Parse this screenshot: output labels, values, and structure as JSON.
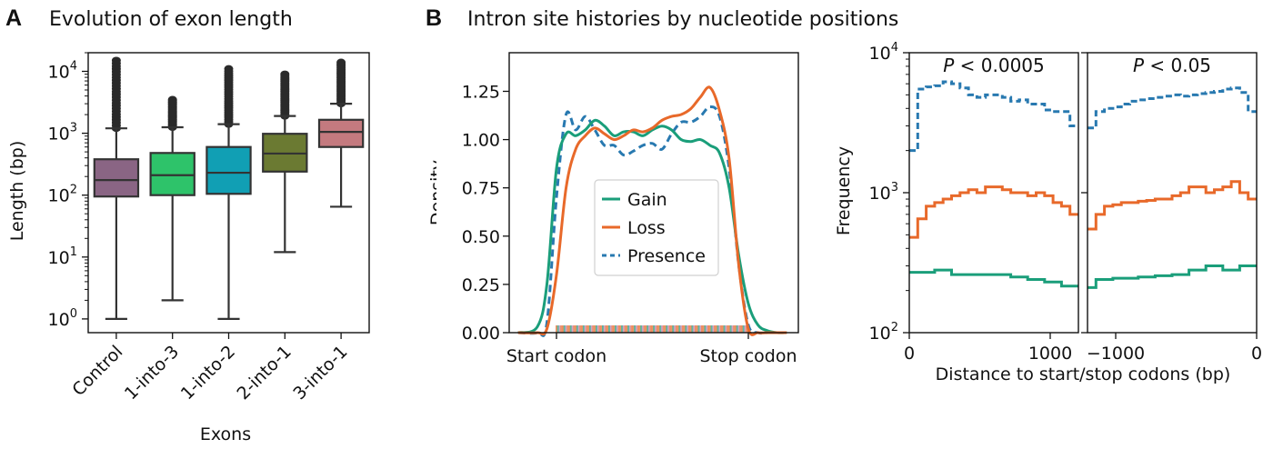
{
  "panel_a": {
    "letter": "A",
    "title": "Evolution of exon length"
  },
  "panel_b": {
    "letter": "B",
    "title": "Intron site histories by nucleotide positions"
  },
  "colors": {
    "control": "#8a6584",
    "one_into_three": "#2ec36a",
    "one_into_two": "#119fb4",
    "two_into_one": "#6b7a32",
    "three_into_one": "#c47a7f",
    "gain": "#1a9e7a",
    "loss": "#e8692a",
    "presence": "#2879b0"
  },
  "chart_data": [
    {
      "type": "box",
      "xlabel": "Exons",
      "ylabel": "Length (bp)",
      "yscale": "log",
      "ylim": [
        0.6,
        20000
      ],
      "ytick_labels": [
        "10^0",
        "10^1",
        "10^2",
        "10^3",
        "10^4"
      ],
      "categories": [
        "Control",
        "1-into-3",
        "1-into-2",
        "2-into-1",
        "3-into-1"
      ],
      "boxes": [
        {
          "whisker_low": 1,
          "q1": 95,
          "median": 175,
          "q3": 380,
          "whisker_high": 1200,
          "outlier_max": 15000
        },
        {
          "whisker_low": 2,
          "q1": 100,
          "median": 210,
          "q3": 480,
          "whisker_high": 1250,
          "outlier_max": 3500
        },
        {
          "whisker_low": 1,
          "q1": 105,
          "median": 230,
          "q3": 600,
          "whisker_high": 1400,
          "outlier_max": 11000
        },
        {
          "whisker_low": 12,
          "q1": 240,
          "median": 470,
          "q3": 980,
          "whisker_high": 1900,
          "outlier_max": 9000
        },
        {
          "whisker_low": 65,
          "q1": 600,
          "median": 1050,
          "q3": 1650,
          "whisker_high": 3000,
          "outlier_max": 14000
        }
      ]
    },
    {
      "type": "line",
      "ylabel": "Density",
      "xtick_labels": [
        "Start codon",
        "Stop codon"
      ],
      "ylim": [
        0,
        1.45
      ],
      "ytick_labels": [
        "0.00",
        "0.25",
        "0.50",
        "0.75",
        "1.00",
        "1.25"
      ],
      "x": [
        -0.2,
        -0.1,
        -0.05,
        0,
        0.05,
        0.1,
        0.15,
        0.2,
        0.25,
        0.3,
        0.35,
        0.4,
        0.45,
        0.5,
        0.55,
        0.6,
        0.65,
        0.7,
        0.75,
        0.8,
        0.85,
        0.9,
        0.95,
        1.0,
        1.05,
        1.1,
        1.15,
        1.2
      ],
      "series": [
        {
          "name": "Gain",
          "style": "solid",
          "values": [
            0.0,
            0.03,
            0.25,
            0.85,
            1.03,
            1.02,
            1.05,
            1.1,
            1.07,
            1.02,
            1.04,
            1.04,
            1.02,
            1.05,
            1.07,
            1.05,
            1.0,
            0.99,
            1.0,
            0.97,
            0.93,
            0.75,
            0.4,
            0.15,
            0.04,
            0.01,
            0.0,
            0.0
          ]
        },
        {
          "name": "Loss",
          "style": "solid",
          "values": [
            0.0,
            0.0,
            0.02,
            0.3,
            0.75,
            0.95,
            1.02,
            1.06,
            1.03,
            1.0,
            1.02,
            1.05,
            1.04,
            1.06,
            1.1,
            1.12,
            1.13,
            1.16,
            1.22,
            1.27,
            1.15,
            0.9,
            0.35,
            0.02,
            0.0,
            0.0,
            0.0,
            0.0
          ]
        },
        {
          "name": "Presence",
          "style": "dashed",
          "values": [
            0.0,
            0.0,
            0.05,
            0.7,
            1.13,
            1.05,
            1.12,
            1.05,
            0.97,
            0.97,
            0.92,
            0.94,
            0.97,
            0.98,
            0.95,
            1.03,
            1.09,
            1.09,
            1.12,
            1.17,
            1.12,
            0.85,
            0.35,
            0.04,
            0.0,
            0.0,
            0.0,
            0.0
          ]
        }
      ],
      "legend_position": "center"
    },
    {
      "type": "step",
      "ylabel": "Frequency",
      "xlabel": "Distance to start/stop codons (bp)",
      "yscale": "log",
      "ylim": [
        100,
        10000
      ],
      "ytick_labels": [
        "10^2",
        "10^3",
        "10^4"
      ],
      "subplots": [
        {
          "annotation": {
            "italic": "P",
            "text": " < 0.0005"
          },
          "xlim": [
            0,
            1200
          ],
          "xtick_labels": [
            "0",
            "1000"
          ],
          "x_edges": [
            0,
            60,
            120,
            180,
            240,
            300,
            360,
            420,
            480,
            540,
            600,
            660,
            720,
            780,
            840,
            900,
            960,
            1020,
            1080,
            1140,
            1200
          ],
          "series": [
            {
              "name": "Presence",
              "values": [
                2000,
                5500,
                5700,
                5800,
                6200,
                6000,
                5600,
                5000,
                4800,
                5000,
                5000,
                4800,
                4500,
                4600,
                4300,
                4300,
                3900,
                3800,
                3800,
                3000
              ]
            },
            {
              "name": "Loss",
              "values": [
                480,
                650,
                800,
                850,
                900,
                950,
                1000,
                1050,
                1000,
                1100,
                1100,
                1050,
                1000,
                1000,
                950,
                1000,
                950,
                850,
                800,
                700
              ]
            },
            {
              "name": "Gain",
              "values": [
                270,
                270,
                270,
                280,
                280,
                260,
                260,
                260,
                260,
                260,
                260,
                260,
                250,
                250,
                240,
                240,
                230,
                230,
                215,
                215
              ]
            }
          ]
        },
        {
          "annotation": {
            "italic": "P",
            "text": " < 0.05"
          },
          "xlim": [
            -1200,
            0
          ],
          "xtick_labels": [
            "−1000",
            "0"
          ],
          "x_edges": [
            -1200,
            -1140,
            -1080,
            -1020,
            -960,
            -900,
            -840,
            -780,
            -720,
            -660,
            -600,
            -540,
            -480,
            -420,
            -360,
            -300,
            -240,
            -180,
            -120,
            -60,
            0
          ],
          "series": [
            {
              "name": "Presence",
              "values": [
                2900,
                3800,
                4000,
                4100,
                4300,
                4500,
                4600,
                4700,
                4800,
                4900,
                5000,
                4900,
                5000,
                5100,
                5200,
                5300,
                5500,
                5600,
                5200,
                3800
              ]
            },
            {
              "name": "Loss",
              "values": [
                550,
                700,
                800,
                820,
                850,
                850,
                870,
                880,
                900,
                900,
                950,
                1000,
                1100,
                1100,
                1000,
                1050,
                1100,
                1200,
                1000,
                900
              ]
            },
            {
              "name": "Gain",
              "values": [
                210,
                240,
                240,
                245,
                245,
                245,
                250,
                250,
                255,
                255,
                260,
                260,
                280,
                280,
                300,
                300,
                280,
                280,
                300,
                300
              ]
            }
          ]
        }
      ]
    }
  ]
}
